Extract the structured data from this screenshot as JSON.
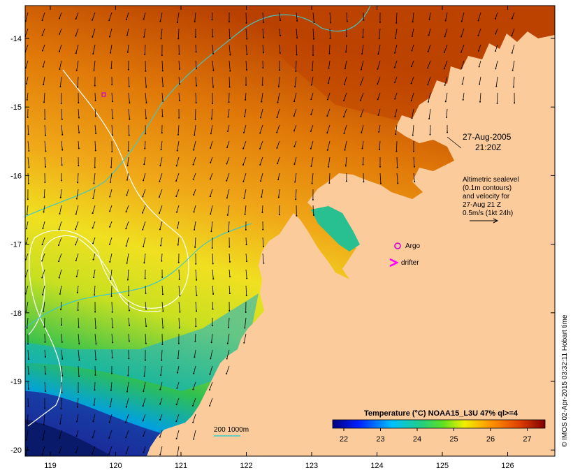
{
  "map": {
    "date_label": "27-Aug-2005",
    "time_label": "21:20Z",
    "lon_ticks": [
      "119",
      "120",
      "121",
      "122",
      "123",
      "124",
      "125",
      "126"
    ],
    "lat_ticks": [
      "-14",
      "-15",
      "-16",
      "-17",
      "-18",
      "-19",
      "-20"
    ],
    "altimetry_note": [
      "Altimetric sealevel",
      "(0.1m contours)",
      "and velocity for",
      "27-Aug 21 Z",
      "0.5m/s (1kt 24h)"
    ],
    "legend": {
      "argo_label": "Argo",
      "drifter_label": "drifter",
      "argo_color": "#cc00cc",
      "drifter_color": "#ff00ff"
    },
    "depth_contour_label": "200  1000m",
    "colorbar": {
      "title": "Temperature (°C) NOAA15_L3U 47% ql>=4",
      "ticks": [
        "22",
        "23",
        "24",
        "25",
        "26",
        "27"
      ]
    },
    "credit": "© IMOS 02-Apr-2015 03:32:11 Hobart time",
    "colors": {
      "land": "#fccb9c",
      "cold": "#1b2d9a",
      "cool": "#00b3e6",
      "mid": "#3cc83c",
      "warm_yellow": "#e8e820",
      "orange": "#f0a010",
      "hot": "#c04a00",
      "contour_white": "#ffffff",
      "bathy_cyan": "#40c8c8"
    }
  }
}
